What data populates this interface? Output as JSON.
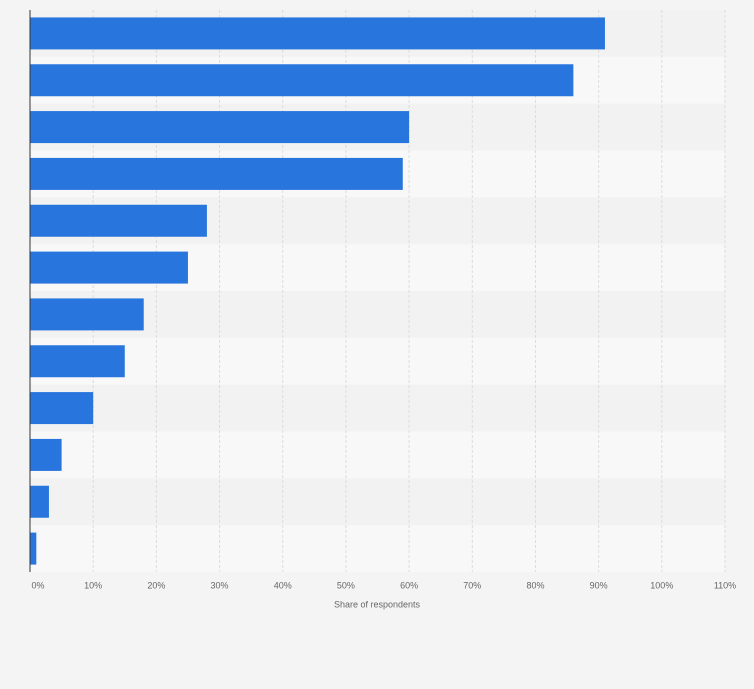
{
  "chart_data": {
    "type": "barh",
    "categories": [
      null,
      null,
      null,
      null,
      null,
      null,
      null,
      null,
      null,
      null,
      null,
      null
    ],
    "values": [
      91,
      86,
      60,
      59,
      28,
      25,
      18,
      15,
      10,
      5,
      3,
      1
    ],
    "color": "#2876dd",
    "x_label": "Share of respondents",
    "xlim": [
      0,
      110
    ],
    "xticks": [
      {
        "value": 0,
        "label": "0%"
      },
      {
        "value": 10,
        "label": "10%"
      },
      {
        "value": 20,
        "label": "20%"
      },
      {
        "value": 30,
        "label": "30%"
      },
      {
        "value": 40,
        "label": "40%"
      },
      {
        "value": 50,
        "label": "50%"
      },
      {
        "value": 60,
        "label": "60%"
      },
      {
        "value": 70,
        "label": "70%"
      },
      {
        "value": 80,
        "label": "80%"
      },
      {
        "value": 90,
        "label": "90%"
      },
      {
        "value": 100,
        "label": "100%"
      },
      {
        "value": 110,
        "label": "110%"
      }
    ],
    "grid": true
  }
}
